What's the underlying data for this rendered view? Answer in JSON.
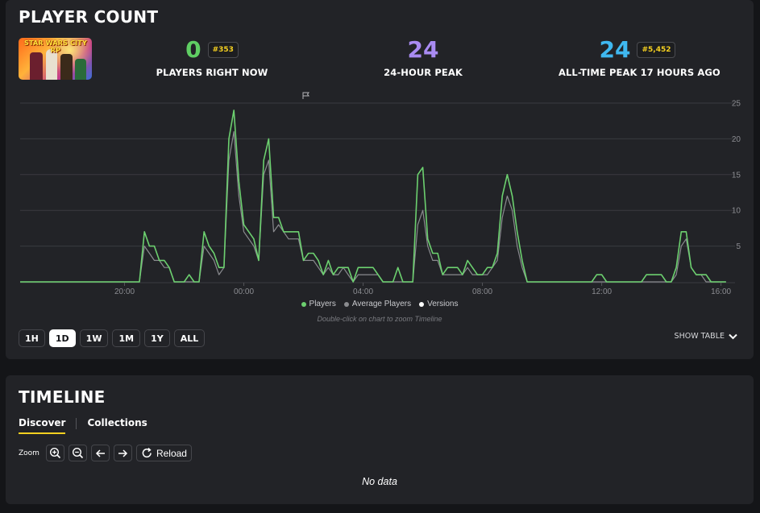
{
  "player_count": {
    "title": "PLAYER COUNT",
    "thumbnail_logo": "STAR WARS CITY RP",
    "stats": {
      "now": {
        "value": "0",
        "rank": "#353",
        "label": "PLAYERS RIGHT NOW",
        "color": "#5fce63"
      },
      "peak_24h": {
        "value": "24",
        "label": "24-HOUR PEAK",
        "color": "#a98bf2"
      },
      "all_time": {
        "value": "24",
        "rank": "#5,452",
        "label": "ALL-TIME PEAK 17 HOURS AGO",
        "color": "#3fb8f0"
      }
    },
    "legend": {
      "players": "Players",
      "average": "Average Players",
      "versions": "Versions"
    },
    "hint": "Double-click on chart to zoom Timeline",
    "ranges": [
      "1H",
      "1D",
      "1W",
      "1M",
      "1Y",
      "ALL"
    ],
    "active_range": "1D",
    "show_table": "SHOW TABLE",
    "colors": {
      "players": "#6cd06f",
      "average": "#8a8b8f",
      "versions": "#ffffff"
    }
  },
  "chart_data": {
    "type": "line",
    "x_label": "",
    "y_label": "",
    "x_ticks": [
      "20:00",
      "00:00",
      "04:00",
      "08:00",
      "12:00",
      "16:00"
    ],
    "y_ticks": [
      "5",
      "10",
      "15",
      "20",
      "25"
    ],
    "ylim": [
      0,
      25
    ],
    "x_range_hours": [
      16.5,
      16.2
    ],
    "grid": true,
    "legend_position": "bottom-center",
    "series": [
      {
        "name": "Players",
        "points": [
          [
            "16:30",
            0
          ],
          [
            "20:30",
            0
          ],
          [
            "20:40",
            7
          ],
          [
            "20:50",
            5
          ],
          [
            "21:00",
            5
          ],
          [
            "21:10",
            3
          ],
          [
            "21:20",
            3
          ],
          [
            "21:30",
            2
          ],
          [
            "21:40",
            0
          ],
          [
            "22:00",
            0
          ],
          [
            "22:10",
            1
          ],
          [
            "22:20",
            0
          ],
          [
            "22:30",
            0
          ],
          [
            "22:40",
            7
          ],
          [
            "22:50",
            5
          ],
          [
            "23:00",
            4
          ],
          [
            "23:10",
            2
          ],
          [
            "23:20",
            2
          ],
          [
            "23:30",
            20
          ],
          [
            "23:40",
            24
          ],
          [
            "23:50",
            14
          ],
          [
            "00:00",
            8
          ],
          [
            "00:10",
            7
          ],
          [
            "00:20",
            6
          ],
          [
            "00:30",
            3
          ],
          [
            "00:40",
            17
          ],
          [
            "00:50",
            20
          ],
          [
            "01:00",
            9
          ],
          [
            "01:10",
            9
          ],
          [
            "01:20",
            7
          ],
          [
            "01:30",
            7
          ],
          [
            "01:40",
            7
          ],
          [
            "01:50",
            7
          ],
          [
            "02:00",
            3
          ],
          [
            "02:10",
            4
          ],
          [
            "02:20",
            4
          ],
          [
            "02:30",
            3
          ],
          [
            "02:40",
            1
          ],
          [
            "02:50",
            3
          ],
          [
            "03:00",
            1
          ],
          [
            "03:10",
            2
          ],
          [
            "03:20",
            2
          ],
          [
            "03:30",
            2
          ],
          [
            "03:40",
            0
          ],
          [
            "03:50",
            2
          ],
          [
            "04:00",
            2
          ],
          [
            "04:10",
            2
          ],
          [
            "04:20",
            2
          ],
          [
            "04:30",
            1
          ],
          [
            "04:40",
            0
          ],
          [
            "04:50",
            0
          ],
          [
            "05:00",
            0
          ],
          [
            "05:10",
            2
          ],
          [
            "05:20",
            0
          ],
          [
            "05:40",
            0
          ],
          [
            "05:50",
            15
          ],
          [
            "06:00",
            16
          ],
          [
            "06:10",
            6
          ],
          [
            "06:20",
            4
          ],
          [
            "06:30",
            4
          ],
          [
            "06:40",
            1
          ],
          [
            "06:50",
            2
          ],
          [
            "07:00",
            2
          ],
          [
            "07:10",
            2
          ],
          [
            "07:20",
            1
          ],
          [
            "07:30",
            3
          ],
          [
            "07:40",
            2
          ],
          [
            "07:50",
            1
          ],
          [
            "08:00",
            1
          ],
          [
            "08:10",
            2
          ],
          [
            "08:20",
            2
          ],
          [
            "08:30",
            4
          ],
          [
            "08:40",
            12
          ],
          [
            "08:50",
            15
          ],
          [
            "09:00",
            12
          ],
          [
            "09:10",
            7
          ],
          [
            "09:20",
            3
          ],
          [
            "09:30",
            0
          ],
          [
            "11:40",
            0
          ],
          [
            "11:50",
            1
          ],
          [
            "12:00",
            1
          ],
          [
            "12:10",
            0
          ],
          [
            "13:20",
            0
          ],
          [
            "13:30",
            1
          ],
          [
            "13:40",
            1
          ],
          [
            "13:50",
            1
          ],
          [
            "14:00",
            1
          ],
          [
            "14:10",
            0
          ],
          [
            "14:20",
            0
          ],
          [
            "14:30",
            2
          ],
          [
            "14:40",
            7
          ],
          [
            "14:50",
            7
          ],
          [
            "15:00",
            2
          ],
          [
            "15:10",
            1
          ],
          [
            "15:20",
            1
          ],
          [
            "15:30",
            1
          ],
          [
            "15:40",
            0
          ],
          [
            "16:10",
            0
          ]
        ]
      },
      {
        "name": "Average Players",
        "points": [
          [
            "16:30",
            0
          ],
          [
            "20:30",
            0
          ],
          [
            "20:40",
            5
          ],
          [
            "20:50",
            4
          ],
          [
            "21:00",
            3
          ],
          [
            "21:10",
            3
          ],
          [
            "21:20",
            2
          ],
          [
            "21:30",
            2
          ],
          [
            "21:40",
            0
          ],
          [
            "22:30",
            0
          ],
          [
            "22:40",
            5
          ],
          [
            "22:50",
            4
          ],
          [
            "23:00",
            3
          ],
          [
            "23:10",
            1
          ],
          [
            "23:20",
            2
          ],
          [
            "23:30",
            17
          ],
          [
            "23:40",
            21
          ],
          [
            "23:50",
            12
          ],
          [
            "00:00",
            7
          ],
          [
            "00:10",
            6
          ],
          [
            "00:20",
            5
          ],
          [
            "00:30",
            3
          ],
          [
            "00:40",
            15
          ],
          [
            "00:50",
            17
          ],
          [
            "01:00",
            7
          ],
          [
            "01:10",
            8
          ],
          [
            "01:20",
            7
          ],
          [
            "01:30",
            6
          ],
          [
            "01:40",
            6
          ],
          [
            "01:50",
            6
          ],
          [
            "02:00",
            3
          ],
          [
            "02:10",
            3
          ],
          [
            "02:20",
            3
          ],
          [
            "02:30",
            2
          ],
          [
            "02:40",
            1
          ],
          [
            "02:50",
            2
          ],
          [
            "03:00",
            1
          ],
          [
            "03:10",
            1
          ],
          [
            "03:20",
            2
          ],
          [
            "03:30",
            1
          ],
          [
            "03:40",
            0
          ],
          [
            "03:50",
            1
          ],
          [
            "04:00",
            1
          ],
          [
            "04:10",
            1
          ],
          [
            "04:20",
            1
          ],
          [
            "04:30",
            1
          ],
          [
            "04:40",
            0
          ],
          [
            "05:40",
            0
          ],
          [
            "05:50",
            8
          ],
          [
            "06:00",
            10
          ],
          [
            "06:10",
            5
          ],
          [
            "06:20",
            3
          ],
          [
            "06:30",
            3
          ],
          [
            "06:40",
            1
          ],
          [
            "06:50",
            1
          ],
          [
            "07:00",
            1
          ],
          [
            "07:10",
            1
          ],
          [
            "07:20",
            1
          ],
          [
            "07:30",
            2
          ],
          [
            "07:40",
            1
          ],
          [
            "07:50",
            1
          ],
          [
            "08:00",
            1
          ],
          [
            "08:10",
            1
          ],
          [
            "08:20",
            2
          ],
          [
            "08:30",
            3
          ],
          [
            "08:40",
            9
          ],
          [
            "08:50",
            12
          ],
          [
            "09:00",
            10
          ],
          [
            "09:10",
            5
          ],
          [
            "09:20",
            2
          ],
          [
            "09:30",
            0
          ],
          [
            "14:20",
            0
          ],
          [
            "14:30",
            1
          ],
          [
            "14:40",
            5
          ],
          [
            "14:50",
            6
          ],
          [
            "15:00",
            2
          ],
          [
            "15:10",
            1
          ],
          [
            "15:20",
            1
          ],
          [
            "15:30",
            0
          ],
          [
            "16:10",
            0
          ]
        ]
      }
    ]
  },
  "timeline": {
    "title": "TIMELINE",
    "tabs": [
      "Discover",
      "Collections"
    ],
    "active_tab": "Discover",
    "zoom_label": "Zoom",
    "reload_label": "Reload",
    "empty_text": "No data"
  }
}
